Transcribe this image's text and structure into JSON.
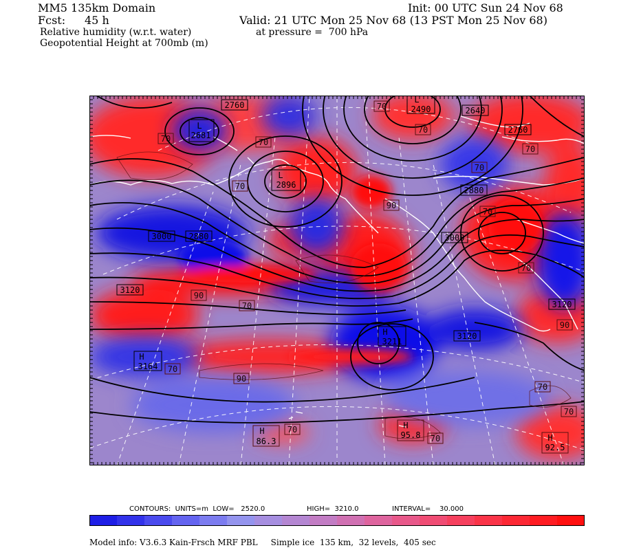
{
  "header": {
    "domain": "MM5 135km Domain",
    "init": "Init: 00 UTC Sun 24 Nov 68",
    "fcst_label": "Fcst:",
    "fcst_value": "45 h",
    "valid": "Valid: 21 UTC Mon 25 Nov 68 (13 PST Mon 25 Nov 68)",
    "field1": "Relative humidity (w.r.t. water)",
    "field1_level": "at pressure =  700 hPa",
    "field2": "Geopotential Height at 700mb (m)"
  },
  "map": {
    "pressure_centers": [
      {
        "type": "L",
        "value": "2681"
      },
      {
        "type": "L",
        "value": "2490"
      },
      {
        "type": "L",
        "value": "2896"
      },
      {
        "type": "H",
        "value": "3211"
      },
      {
        "type": "H",
        "value": "3164"
      },
      {
        "type": "H",
        "value": "86.3"
      },
      {
        "type": "H",
        "value": "95.8"
      },
      {
        "type": "H",
        "value": "92.5"
      }
    ],
    "height_labels": [
      "2760",
      "2640",
      "2760",
      "2880",
      "3000",
      "2880",
      "3000",
      "3120",
      "3120",
      "3120"
    ],
    "rh_labels": [
      "70",
      "70",
      "70",
      "70",
      "70",
      "70",
      "70",
      "70",
      "70",
      "70",
      "90",
      "90",
      "90",
      "90",
      "70",
      "70",
      "70",
      "70",
      "70"
    ],
    "colors": {
      "dry": "#1414e6",
      "mid": "#b08ac8",
      "moist": "#ff1a1a",
      "contour": "#000000",
      "coast": "#ffffff"
    }
  },
  "colorbar": {
    "contours_label": "CONTOURS:  UNITS=m  LOW=   2520.0",
    "high_label": "HIGH=  3210.0",
    "interval_label": "INTERVAL=    30.000",
    "stops": [
      "#1e1ee6",
      "#3232ea",
      "#4a4aee",
      "#6464f0",
      "#7c7cf0",
      "#9494ee",
      "#a68ee0",
      "#b486d2",
      "#c27cc4",
      "#d070b2",
      "#de649e",
      "#e8588a",
      "#f04c74",
      "#f6405e",
      "#fa3448",
      "#fc2834",
      "#fe1c22",
      "#ff1010"
    ]
  },
  "footer": {
    "model_info": "Model info: V3.6.3 Kain-Frsch MRF PBL     Simple ice  135 km,  32 levels,  405 sec"
  }
}
